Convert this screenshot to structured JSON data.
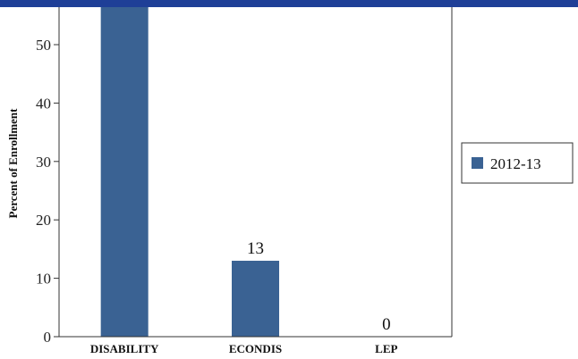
{
  "chart_data": {
    "type": "bar",
    "title": "",
    "xlabel": "",
    "ylabel": "Percent of Enrollment",
    "categories": [
      "DISABILITY",
      "ECONDIS",
      "LEP"
    ],
    "series": [
      {
        "name": "2012-13",
        "values": [
          58,
          13,
          0
        ],
        "data_labels": [
          "",
          "13",
          "0"
        ]
      }
    ],
    "ylim": [
      0,
      56
    ],
    "yticks": [
      0,
      10,
      20,
      30,
      40,
      50
    ],
    "grid": false,
    "legend_position": "right",
    "colors": {
      "bar": "#3a6293",
      "banner": "#1f3f97",
      "axis": "#333333"
    }
  }
}
